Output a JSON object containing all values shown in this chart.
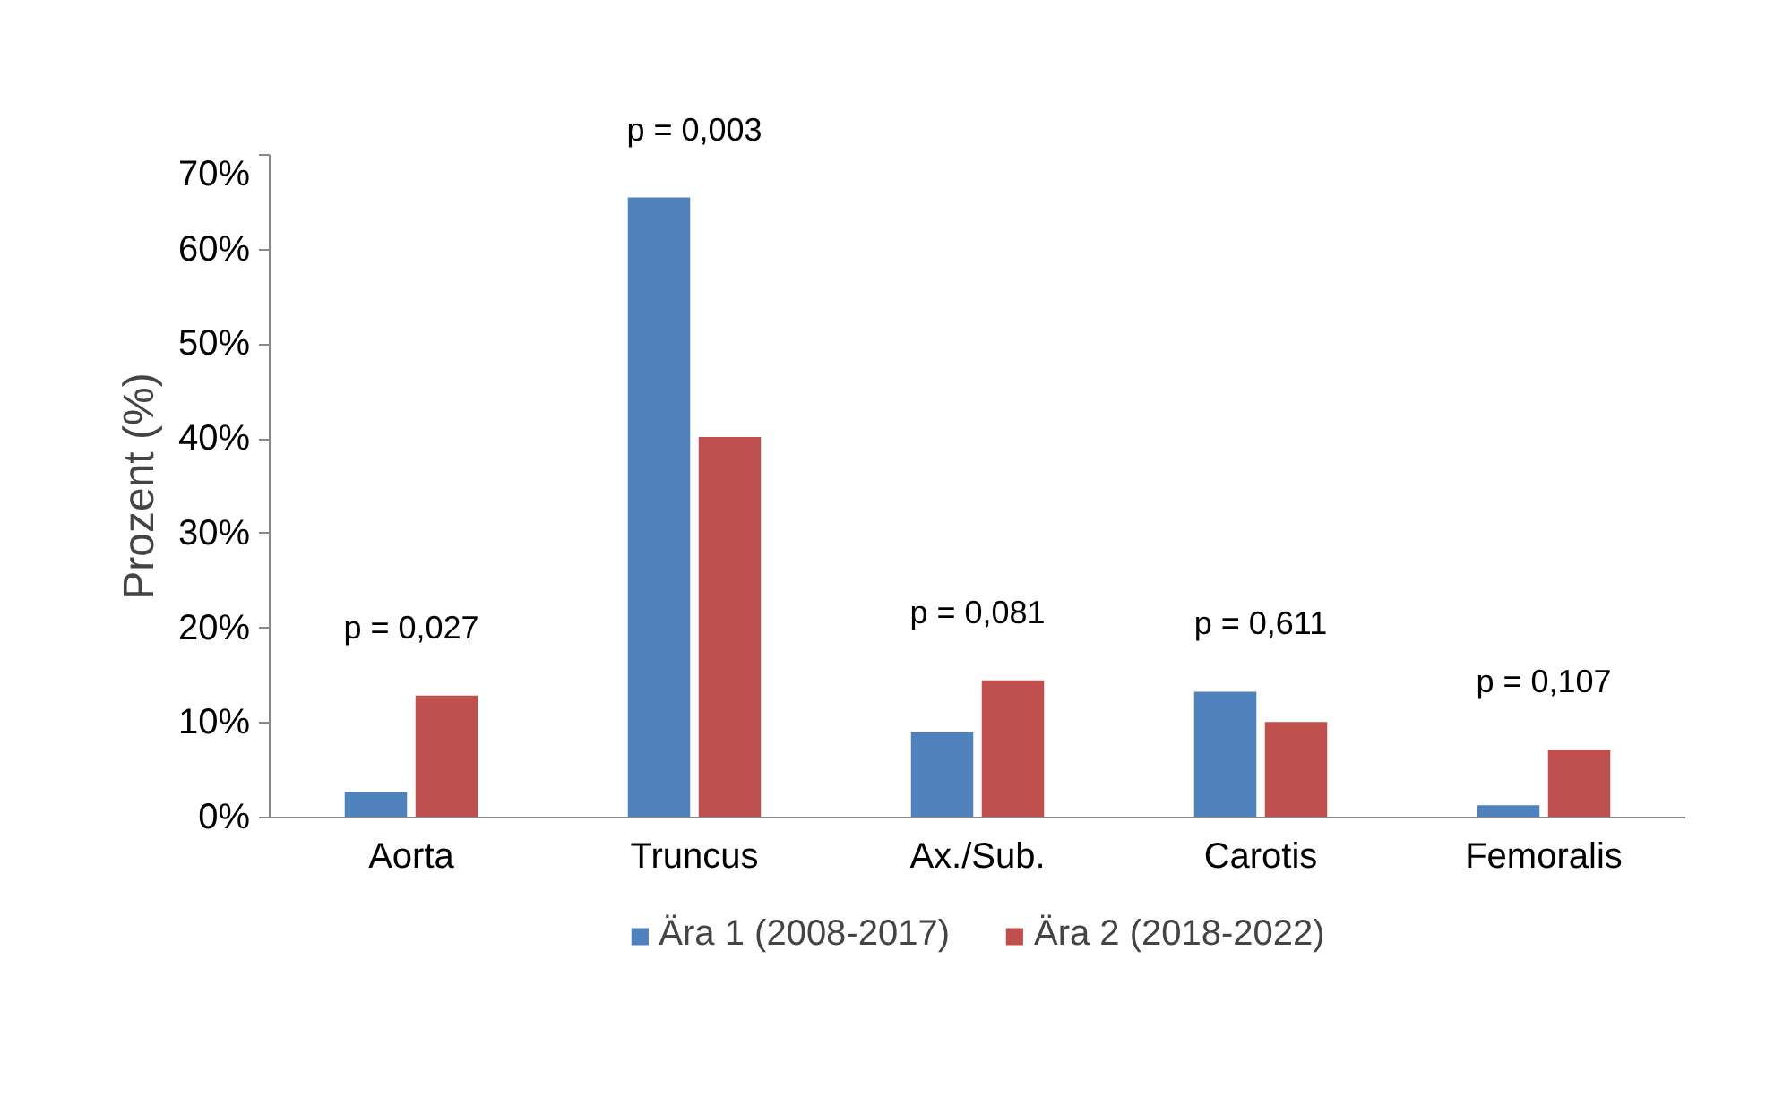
{
  "chart_data": {
    "type": "bar",
    "ylabel": "Prozent (%)",
    "categories": [
      "Aorta",
      "Truncus",
      "Ax./Sub.",
      "Carotis",
      "Femoralis"
    ],
    "series": [
      {
        "name": "Ära 1 (2008-2017)",
        "color": "#4f81bd",
        "values": [
          2.7,
          65.5,
          9.0,
          13.3,
          1.3
        ]
      },
      {
        "name": "Ära 2 (2018-2022)",
        "color": "#c0504d",
        "values": [
          12.9,
          40.2,
          14.5,
          10.1,
          7.2
        ]
      }
    ],
    "ylim": [
      0,
      70
    ],
    "yticks": [
      {
        "value": 0,
        "label": "0%"
      },
      {
        "value": 10,
        "label": "10%"
      },
      {
        "value": 20,
        "label": "20%"
      },
      {
        "value": 30,
        "label": "30%"
      },
      {
        "value": 40,
        "label": "40%"
      },
      {
        "value": 50,
        "label": "50%"
      },
      {
        "value": 60,
        "label": "60%"
      },
      {
        "value": 70,
        "label": "70%"
      }
    ],
    "annotations": [
      "p = 0,027",
      "p = 0,003",
      "p = 0,081",
      "p = 0,611",
      "p = 0,107"
    ],
    "grid": false,
    "legend": "bottom"
  }
}
